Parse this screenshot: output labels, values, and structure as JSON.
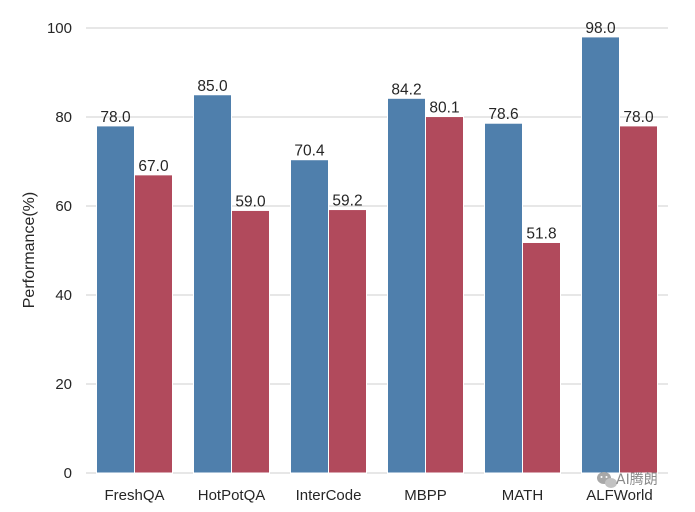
{
  "chart_data": {
    "type": "bar",
    "ylabel": "Performance(%)",
    "xlabel": "",
    "ylim": [
      0,
      100
    ],
    "yticks": [
      0,
      20,
      40,
      60,
      80,
      100
    ],
    "grid": true,
    "categories": [
      "FreshQA",
      "HotPotQA",
      "InterCode",
      "MBPP",
      "MATH",
      "ALFWorld"
    ],
    "series": [
      {
        "color": "#4f7fac",
        "values": [
          78.0,
          85.0,
          70.4,
          84.2,
          78.6,
          98.0
        ],
        "labels": [
          "78.0",
          "85.0",
          "70.4",
          "84.2",
          "78.6",
          "98.0"
        ]
      },
      {
        "color": "#b14a5c",
        "values": [
          67.0,
          59.0,
          59.2,
          80.1,
          51.8,
          78.0
        ],
        "labels": [
          "67.0",
          "59.0",
          "59.2",
          "80.1",
          "51.8",
          "78.0"
        ]
      }
    ]
  },
  "watermark": {
    "icon": "wechat-icon",
    "text": "AI腾朗"
  }
}
